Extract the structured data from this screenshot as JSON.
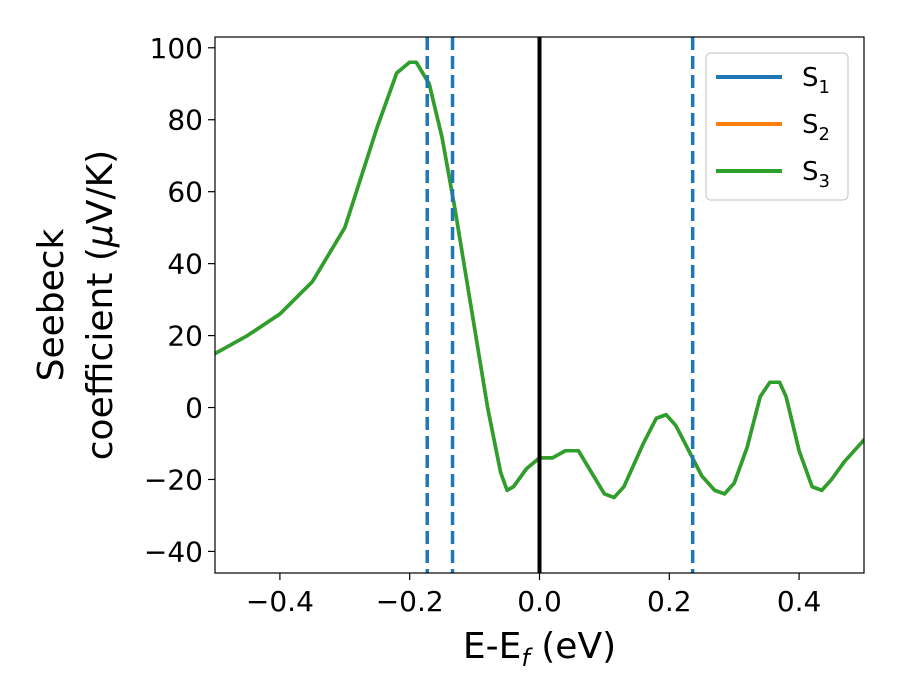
{
  "chart_data": {
    "type": "line",
    "xlabel": "E-E",
    "xlabel_sub": "f",
    "xlabel_unit": " (eV)",
    "ylabel_line1": "Seebeck",
    "ylabel_line2_prefix": "coefficient  (",
    "ylabel_mu": "μ",
    "ylabel_line2_suffix": "V/K)",
    "xlim": [
      -0.5,
      0.5
    ],
    "ylim": [
      -46,
      103
    ],
    "xticks": [
      -0.4,
      -0.2,
      0.0,
      0.2,
      0.4
    ],
    "xtick_labels": [
      "−0.4",
      "−0.2",
      "0.0",
      "0.2",
      "0.4"
    ],
    "yticks": [
      -40,
      -20,
      0,
      20,
      40,
      60,
      80,
      100
    ],
    "ytick_labels": [
      "−40",
      "−20",
      "0",
      "20",
      "40",
      "60",
      "80",
      "100"
    ],
    "grid": false,
    "legend_position": "top-right",
    "vertical_lines": [
      {
        "x": -0.173,
        "style": "dashed",
        "color": "#1f77b4"
      },
      {
        "x": -0.134,
        "style": "dashed",
        "color": "#1f77b4"
      },
      {
        "x": 0.0,
        "style": "solid",
        "color": "#000000"
      },
      {
        "x": 0.236,
        "style": "dashed",
        "color": "#1f77b4"
      }
    ],
    "x": [
      -0.5,
      -0.45,
      -0.4,
      -0.35,
      -0.3,
      -0.25,
      -0.22,
      -0.2,
      -0.19,
      -0.17,
      -0.15,
      -0.13,
      -0.1,
      -0.08,
      -0.06,
      -0.05,
      -0.04,
      -0.02,
      0.0,
      0.02,
      0.04,
      0.06,
      0.08,
      0.1,
      0.115,
      0.13,
      0.16,
      0.18,
      0.195,
      0.21,
      0.23,
      0.25,
      0.27,
      0.285,
      0.3,
      0.32,
      0.34,
      0.355,
      0.37,
      0.38,
      0.4,
      0.42,
      0.435,
      0.45,
      0.47,
      0.5
    ],
    "series": [
      {
        "name": "S",
        "name_sub": "1",
        "color": "#1f77b4",
        "values": [
          15,
          20,
          26,
          35,
          50,
          78,
          93,
          96,
          96,
          90,
          75,
          55,
          22,
          0,
          -18,
          -23,
          -22,
          -17,
          -14,
          -14,
          -12,
          -12,
          -18,
          -24,
          -25,
          -22,
          -10,
          -3,
          -2,
          -5,
          -12,
          -19,
          -23,
          -24,
          -21,
          -11,
          3,
          7,
          7,
          3,
          -12,
          -22,
          -23,
          -20,
          -15,
          -9
        ]
      },
      {
        "name": "S",
        "name_sub": "2",
        "color": "#ff7f0e",
        "values": [
          15,
          20,
          26,
          35,
          50,
          78,
          93,
          96,
          96,
          90,
          75,
          55,
          22,
          0,
          -18,
          -23,
          -22,
          -17,
          -14,
          -14,
          -12,
          -12,
          -18,
          -24,
          -25,
          -22,
          -10,
          -3,
          -2,
          -5,
          -12,
          -19,
          -23,
          -24,
          -21,
          -11,
          3,
          7,
          7,
          3,
          -12,
          -22,
          -23,
          -20,
          -15,
          -9
        ]
      },
      {
        "name": "S",
        "name_sub": "3",
        "color": "#2ca02c",
        "values": [
          15,
          20,
          26,
          35,
          50,
          78,
          93,
          96,
          96,
          90,
          75,
          55,
          22,
          0,
          -18,
          -23,
          -22,
          -17,
          -14,
          -14,
          -12,
          -12,
          -18,
          -24,
          -25,
          -22,
          -10,
          -3,
          -2,
          -5,
          -12,
          -19,
          -23,
          -24,
          -21,
          -11,
          3,
          7,
          7,
          3,
          -12,
          -22,
          -23,
          -20,
          -15,
          -9
        ]
      }
    ]
  }
}
